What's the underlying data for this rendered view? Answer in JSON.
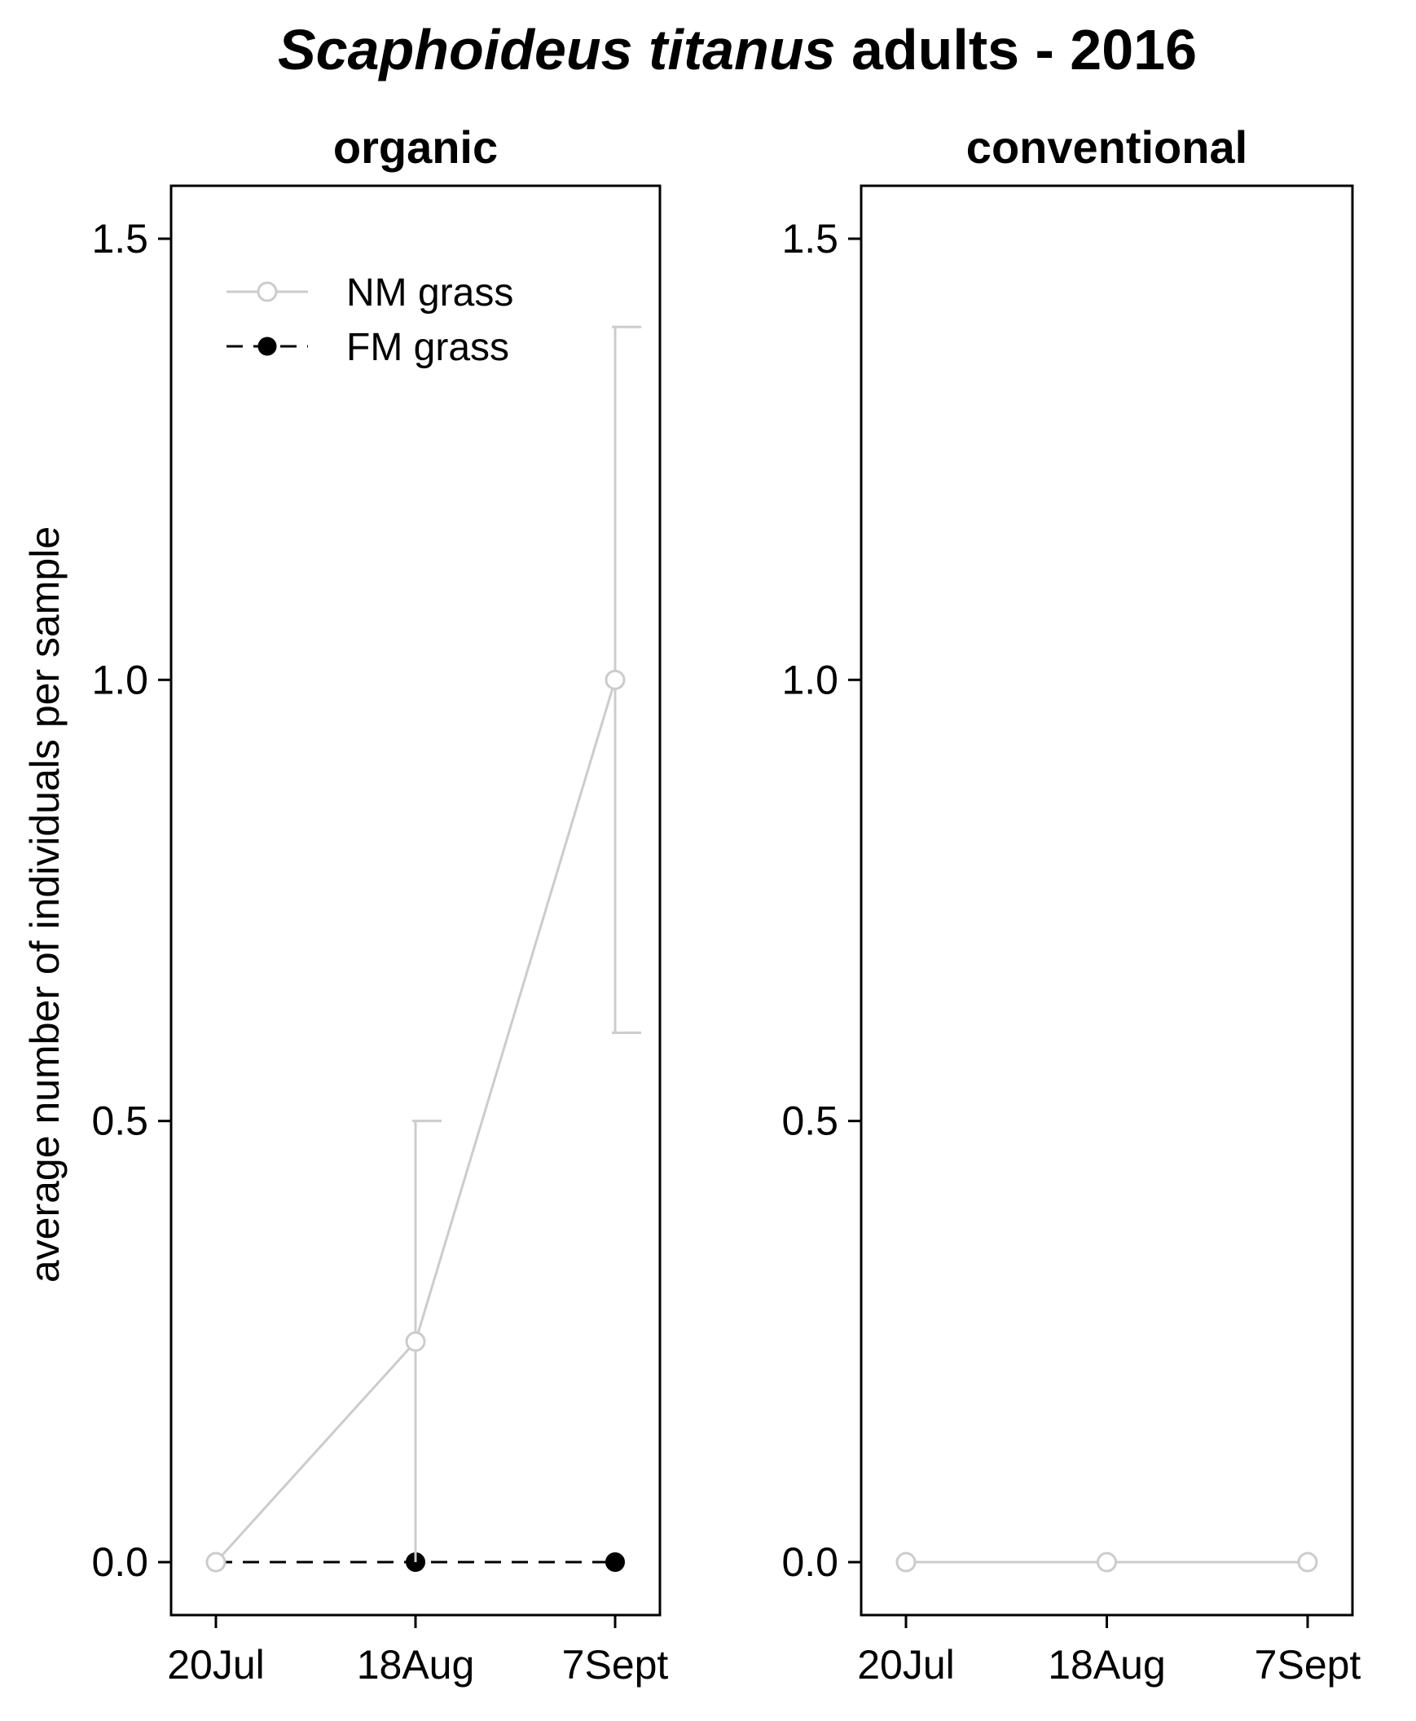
{
  "figure": {
    "title_italic": "Scaphoideus titanus",
    "title_rest": " adults - 2016",
    "ylabel": "average number of individuals per sample"
  },
  "colors": {
    "nm_grass": "#cccccc",
    "fm_grass": "#000000",
    "frame": "#000000"
  },
  "legend": {
    "placement": "top-left",
    "entries": [
      {
        "label": "NM  grass",
        "symbol": "open-circle-solid-line"
      },
      {
        "label": "FM  grass",
        "symbol": "filled-circle-dashed-line"
      }
    ]
  },
  "chart_data": [
    {
      "type": "line",
      "title": "organic",
      "categories": [
        "20Jul",
        "18Aug",
        "7Sept"
      ],
      "ylim": [
        -0.06,
        1.56
      ],
      "yticks": [
        0.0,
        0.5,
        1.0,
        1.5
      ],
      "ytick_labels": [
        "0.0",
        "0.5",
        "1.0",
        "1.5"
      ],
      "series": [
        {
          "name": "NM  grass",
          "values": [
            0.0,
            0.25,
            1.0
          ],
          "error_upper": [
            null,
            0.5,
            1.4
          ],
          "error_lower": [
            null,
            0.0,
            0.6
          ]
        },
        {
          "name": "FM  grass",
          "values": [
            0.0,
            0.0,
            0.0
          ]
        }
      ]
    },
    {
      "type": "line",
      "title": "conventional",
      "categories": [
        "20Jul",
        "18Aug",
        "7Sept"
      ],
      "ylim": [
        -0.06,
        1.56
      ],
      "yticks": [
        0.0,
        0.5,
        1.0,
        1.5
      ],
      "ytick_labels": [
        "0.0",
        "0.5",
        "1.0",
        "1.5"
      ],
      "series": [
        {
          "name": "NM  grass",
          "values": [
            0.0,
            0.0,
            0.0
          ]
        }
      ]
    }
  ]
}
